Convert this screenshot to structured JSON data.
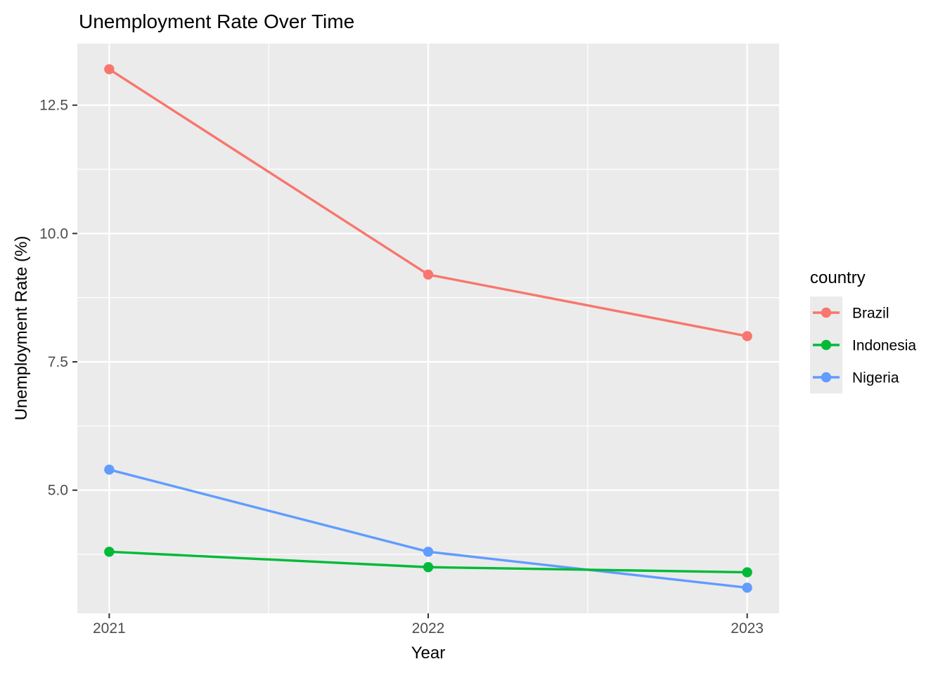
{
  "chart_data": {
    "type": "line",
    "title": "Unemployment Rate Over Time",
    "xlabel": "Year",
    "ylabel": "Unemployment Rate (%)",
    "x": [
      2021,
      2022,
      2023
    ],
    "x_tick_labels": [
      "2021",
      "2022",
      "2023"
    ],
    "y_ticks": [
      5.0,
      7.5,
      10.0,
      12.5
    ],
    "y_tick_labels": [
      "5.0",
      "7.5",
      "10.0",
      "12.5"
    ],
    "y_minor_ticks": [
      3.75,
      6.25,
      8.75,
      11.25
    ],
    "x_minor_ticks": [
      2021.5,
      2022.5
    ],
    "xlim": [
      2020.9,
      2023.1
    ],
    "ylim": [
      2.6,
      13.7
    ],
    "grid": "on",
    "legend": {
      "title": "country",
      "position": "right"
    },
    "series": [
      {
        "name": "Brazil",
        "color": "#F8766D",
        "values": [
          13.2,
          9.2,
          8.0
        ]
      },
      {
        "name": "Indonesia",
        "color": "#00BA38",
        "values": [
          3.8,
          3.5,
          3.4
        ]
      },
      {
        "name": "Nigeria",
        "color": "#619CFF",
        "values": [
          5.4,
          3.8,
          3.1
        ]
      }
    ],
    "colors": {
      "panel_bg": "#EBEBEB",
      "grid": "#FFFFFF",
      "tick_mark": "#333333",
      "tick_label": "#4D4D4D",
      "text": "#000000",
      "figure_bg": "#FFFFFF"
    }
  }
}
